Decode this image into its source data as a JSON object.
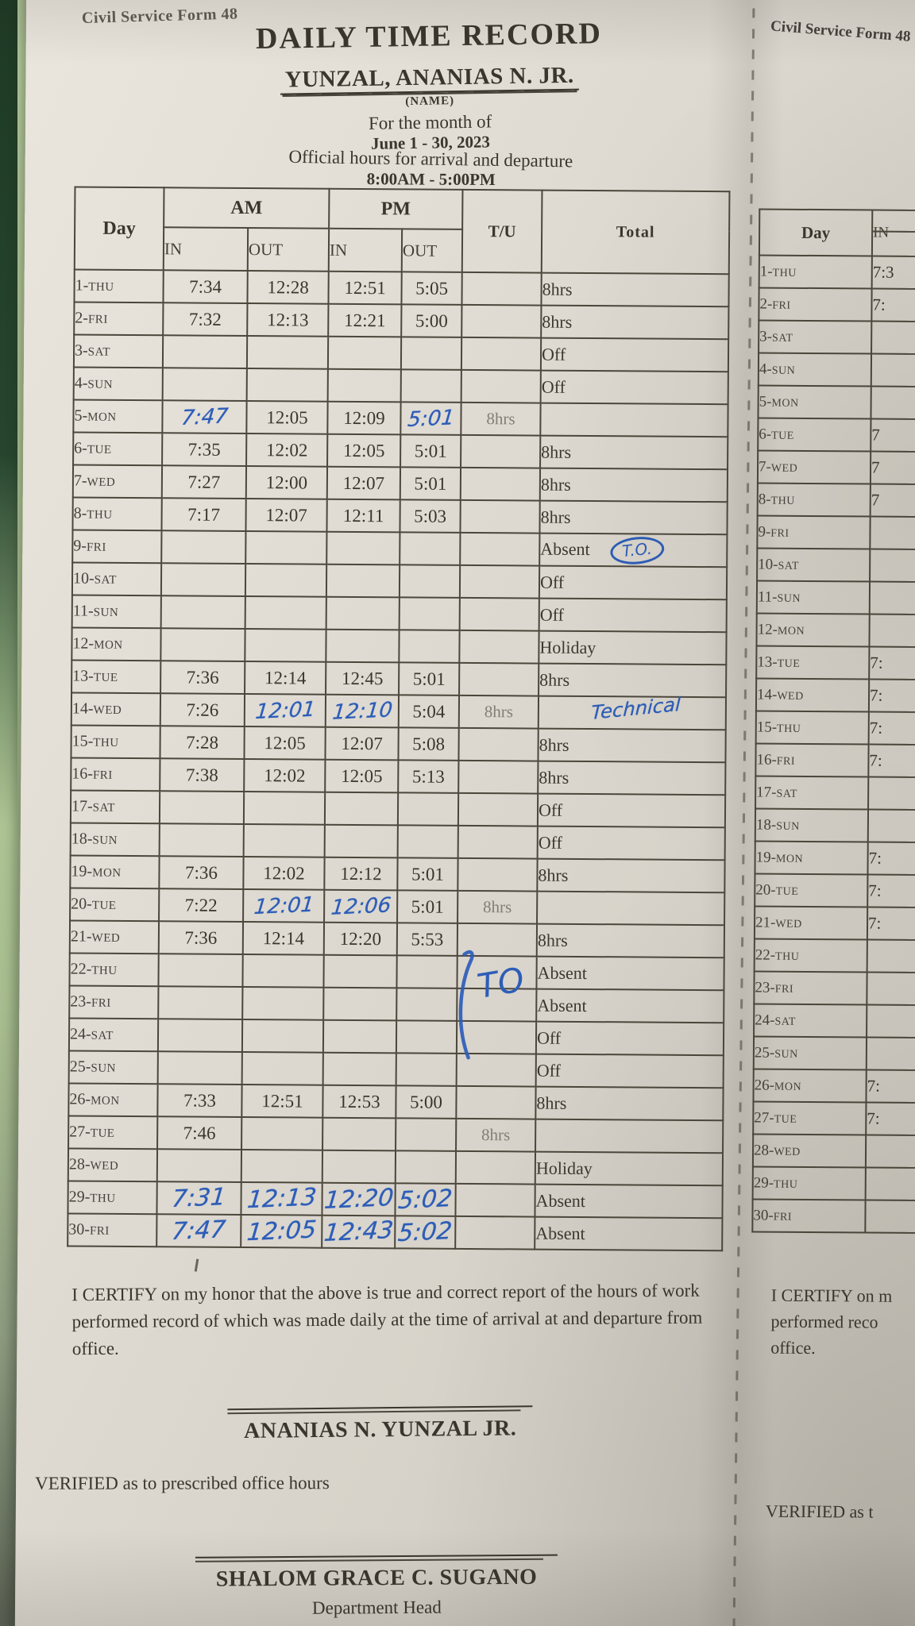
{
  "photo": {
    "colors": {
      "paper": "#ddd9d0",
      "printed_ink": "#3b362d",
      "blue_pen_ink": "#2d5db8",
      "table_line": "#4c463b",
      "gray_print": "#837e73",
      "green_dark": "#27452e",
      "green_light": "#b5cc9a"
    }
  },
  "left_form": {
    "form_no": "Civil Service Form 48",
    "title": "DAILY TIME RECORD",
    "name": "YUNZAL, ANANIAS N. JR.",
    "name_caption": "(NAME)",
    "month_label": "For the month of",
    "month_value": "June 1 - 30, 2023",
    "hours_label": "Official hours for arrival and departure",
    "hours_value": "8:00AM - 5:00PM",
    "table": {
      "col_day": "Day",
      "col_am": "AM",
      "col_pm": "PM",
      "col_in": "IN",
      "col_out": "OUT",
      "col_tu": "T/U",
      "col_total": "Total",
      "rows": [
        {
          "day": "1-THU",
          "am_in": "7:34",
          "am_out": "12:28",
          "pm_in": "12:51",
          "pm_out": "5:05",
          "tu": "",
          "total": "8hrs"
        },
        {
          "day": "2-FRI",
          "am_in": "7:32",
          "am_out": "12:13",
          "pm_in": "12:21",
          "pm_out": "5:00",
          "tu": "",
          "total": "8hrs"
        },
        {
          "day": "3-SAT",
          "am_in": "",
          "am_out": "",
          "pm_in": "",
          "pm_out": "",
          "tu": "",
          "total": "Off"
        },
        {
          "day": "4-SUN",
          "am_in": "",
          "am_out": "",
          "pm_in": "",
          "pm_out": "",
          "tu": "",
          "total": "Off"
        },
        {
          "day": "5-MON",
          "am_in": "7:47",
          "am_out": "12:05",
          "pm_in": "12:09",
          "pm_out": "5:01",
          "tu": "8hrs",
          "total": "",
          "hw": [
            "am_in",
            "pm_out"
          ]
        },
        {
          "day": "6-TUE",
          "am_in": "7:35",
          "am_out": "12:02",
          "pm_in": "12:05",
          "pm_out": "5:01",
          "tu": "",
          "total": "8hrs"
        },
        {
          "day": "7-WED",
          "am_in": "7:27",
          "am_out": "12:00",
          "pm_in": "12:07",
          "pm_out": "5:01",
          "tu": "",
          "total": "8hrs"
        },
        {
          "day": "8-THU",
          "am_in": "7:17",
          "am_out": "12:07",
          "pm_in": "12:11",
          "pm_out": "5:03",
          "tu": "",
          "total": "8hrs"
        },
        {
          "day": "9-FRI",
          "am_in": "",
          "am_out": "",
          "pm_in": "",
          "pm_out": "",
          "tu": "",
          "total": "Absent",
          "annot": "T.O."
        },
        {
          "day": "10-SAT",
          "am_in": "",
          "am_out": "",
          "pm_in": "",
          "pm_out": "",
          "tu": "",
          "total": "Off"
        },
        {
          "day": "11-SUN",
          "am_in": "",
          "am_out": "",
          "pm_in": "",
          "pm_out": "",
          "tu": "",
          "total": "Off"
        },
        {
          "day": "12-MON",
          "am_in": "",
          "am_out": "",
          "pm_in": "",
          "pm_out": "",
          "tu": "",
          "total": "Holiday"
        },
        {
          "day": "13-TUE",
          "am_in": "7:36",
          "am_out": "12:14",
          "pm_in": "12:45",
          "pm_out": "5:01",
          "tu": "",
          "total": "8hrs"
        },
        {
          "day": "14-WED",
          "am_in": "7:26",
          "am_out": "12:01",
          "pm_in": "12:10",
          "pm_out": "5:04",
          "tu": "8hrs",
          "total": "Technical",
          "hw": [
            "am_out",
            "pm_in",
            "total"
          ]
        },
        {
          "day": "15-THU",
          "am_in": "7:28",
          "am_out": "12:05",
          "pm_in": "12:07",
          "pm_out": "5:08",
          "tu": "",
          "total": "8hrs"
        },
        {
          "day": "16-FRI",
          "am_in": "7:38",
          "am_out": "12:02",
          "pm_in": "12:05",
          "pm_out": "5:13",
          "tu": "",
          "total": "8hrs"
        },
        {
          "day": "17-SAT",
          "am_in": "",
          "am_out": "",
          "pm_in": "",
          "pm_out": "",
          "tu": "",
          "total": "Off"
        },
        {
          "day": "18-SUN",
          "am_in": "",
          "am_out": "",
          "pm_in": "",
          "pm_out": "",
          "tu": "",
          "total": "Off"
        },
        {
          "day": "19-MON",
          "am_in": "7:36",
          "am_out": "12:02",
          "pm_in": "12:12",
          "pm_out": "5:01",
          "tu": "",
          "total": "8hrs"
        },
        {
          "day": "20-TUE",
          "am_in": "7:22",
          "am_out": "12:01",
          "pm_in": "12:06",
          "pm_out": "5:01",
          "tu": "8hrs",
          "total": "",
          "hw": [
            "am_out",
            "pm_in"
          ]
        },
        {
          "day": "21-WED",
          "am_in": "7:36",
          "am_out": "12:14",
          "pm_in": "12:20",
          "pm_out": "5:53",
          "tu": "",
          "total": "8hrs"
        },
        {
          "day": "22-THU",
          "am_in": "",
          "am_out": "",
          "pm_in": "",
          "pm_out": "",
          "tu": "",
          "total": "Absent",
          "annot2": "TO"
        },
        {
          "day": "23-FRI",
          "am_in": "",
          "am_out": "",
          "pm_in": "",
          "pm_out": "",
          "tu": "",
          "total": "Absent"
        },
        {
          "day": "24-SAT",
          "am_in": "",
          "am_out": "",
          "pm_in": "",
          "pm_out": "",
          "tu": "",
          "total": "Off"
        },
        {
          "day": "25-SUN",
          "am_in": "",
          "am_out": "",
          "pm_in": "",
          "pm_out": "",
          "tu": "",
          "total": "Off"
        },
        {
          "day": "26-MON",
          "am_in": "7:33",
          "am_out": "12:51",
          "pm_in": "12:53",
          "pm_out": "5:00",
          "tu": "",
          "total": "8hrs"
        },
        {
          "day": "27-TUE",
          "am_in": "7:46",
          "am_out": "",
          "pm_in": "",
          "pm_out": "",
          "tu": "8hrs",
          "total": ""
        },
        {
          "day": "28-WED",
          "am_in": "",
          "am_out": "",
          "pm_in": "",
          "pm_out": "",
          "tu": "",
          "total": "Holiday"
        },
        {
          "day": "29-THU",
          "am_in": "7:31",
          "am_out": "12:13",
          "pm_in": "12:20",
          "pm_out": "5:02",
          "tu": "",
          "total": "Absent",
          "hw": [
            "am_in",
            "am_out",
            "pm_in",
            "pm_out"
          ]
        },
        {
          "day": "30-FRI",
          "am_in": "7:47",
          "am_out": "12:05",
          "pm_in": "12:43",
          "pm_out": "5:02",
          "tu": "",
          "total": "Absent",
          "hw": [
            "am_in",
            "am_out",
            "pm_in",
            "pm_out"
          ]
        }
      ]
    },
    "certify_lines": [
      "I CERTIFY on my honor that the above is true and correct report of the hours of work",
      "performed record of which was made daily at the time of arrival at and departure from",
      "office."
    ],
    "signature1": "ANANIAS N. YUNZAL JR.",
    "verified_text": "VERIFIED as to prescribed office hours",
    "signature2": "SHALOM GRACE C. SUGANO",
    "signature2_title": "Department Head"
  },
  "right_form": {
    "form_no": "Civil Service Form 48",
    "col_day": "Day",
    "col_in": "IN",
    "rows": [
      {
        "day": "1-THU",
        "in": "7:3"
      },
      {
        "day": "2-FRI",
        "in": "7:"
      },
      {
        "day": "3-SAT",
        "in": ""
      },
      {
        "day": "4-SUN",
        "in": ""
      },
      {
        "day": "5-MON",
        "in": ""
      },
      {
        "day": "6-TUE",
        "in": "7"
      },
      {
        "day": "7-WED",
        "in": "7"
      },
      {
        "day": "8-THU",
        "in": "7"
      },
      {
        "day": "9-FRI",
        "in": ""
      },
      {
        "day": "10-SAT",
        "in": ""
      },
      {
        "day": "11-SUN",
        "in": ""
      },
      {
        "day": "12-MON",
        "in": ""
      },
      {
        "day": "13-TUE",
        "in": "7:"
      },
      {
        "day": "14-WED",
        "in": "7:"
      },
      {
        "day": "15-THU",
        "in": "7:"
      },
      {
        "day": "16-FRI",
        "in": "7:"
      },
      {
        "day": "17-SAT",
        "in": ""
      },
      {
        "day": "18-SUN",
        "in": ""
      },
      {
        "day": "19-MON",
        "in": "7:"
      },
      {
        "day": "20-TUE",
        "in": "7:"
      },
      {
        "day": "21-WED",
        "in": "7:"
      },
      {
        "day": "22-THU",
        "in": ""
      },
      {
        "day": "23-FRI",
        "in": ""
      },
      {
        "day": "24-SAT",
        "in": ""
      },
      {
        "day": "25-SUN",
        "in": ""
      },
      {
        "day": "26-MON",
        "in": "7:"
      },
      {
        "day": "27-TUE",
        "in": "7:"
      },
      {
        "day": "28-WED",
        "in": ""
      },
      {
        "day": "29-THU",
        "in": ""
      },
      {
        "day": "30-FRI",
        "in": ""
      }
    ],
    "certify_lines": [
      "I CERTIFY on m",
      "performed reco",
      "office."
    ],
    "verified_text": "VERIFIED as t"
  }
}
